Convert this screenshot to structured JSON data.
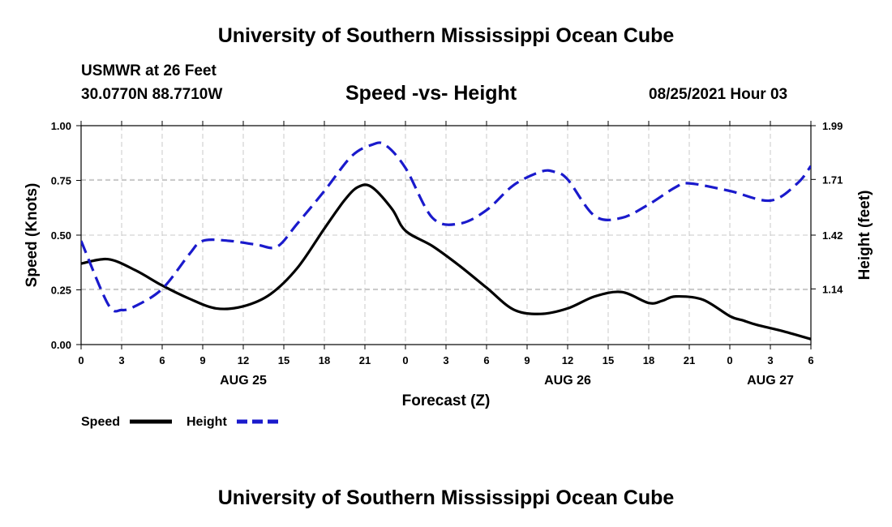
{
  "header": {
    "title_top": "University of Southern Mississippi Ocean Cube",
    "station": "USMWR at 26 Feet",
    "coords": "30.0770N  88.7710W",
    "chart_title": "Speed -vs- Height",
    "datetime": "08/25/2021 Hour 03",
    "title_bottom": "University of Southern Mississippi Ocean Cube"
  },
  "colors": {
    "speed": "#000000",
    "height": "#1a1acc",
    "grid": "#c8c8c8"
  },
  "chart_data": {
    "type": "line",
    "title": "Speed -vs- Height",
    "xlabel": "Forecast (Z)",
    "ylabel": "Speed (Knots)",
    "y2label": "Height (feet)",
    "x_tick_labels": [
      "0",
      "3",
      "6",
      "9",
      "12",
      "15",
      "18",
      "21",
      "0",
      "3",
      "6",
      "9",
      "12",
      "15",
      "18",
      "21",
      "0",
      "3",
      "6"
    ],
    "date_labels": [
      {
        "label": "AUG 25",
        "hour": 12
      },
      {
        "label": "AUG 26",
        "hour": 36
      },
      {
        "label": "AUG 27",
        "hour": 51
      }
    ],
    "xlim": [
      0,
      54
    ],
    "ylim": [
      0,
      1.0
    ],
    "y_ticks": [
      "0.00",
      "0.25",
      "0.50",
      "0.75",
      "1.00"
    ],
    "y2lim": [
      0.85,
      1.99
    ],
    "y2_ticks": [
      "1.14",
      "1.42",
      "1.71",
      "1.99"
    ],
    "grid": true,
    "legend_placement": "bottom-left",
    "series": [
      {
        "name": "Speed",
        "style": "solid",
        "axis": "left",
        "x": [
          0,
          2,
          4,
          6,
          8,
          10,
          12,
          14,
          16,
          18,
          19.5,
          20.5,
          21.5,
          23,
          24,
          26,
          28,
          30,
          32,
          34,
          36,
          38,
          40,
          42,
          43,
          44,
          46,
          48,
          49,
          50,
          52,
          54
        ],
        "y": [
          0.37,
          0.39,
          0.34,
          0.27,
          0.21,
          0.165,
          0.175,
          0.23,
          0.35,
          0.53,
          0.66,
          0.72,
          0.72,
          0.62,
          0.52,
          0.45,
          0.36,
          0.26,
          0.16,
          0.14,
          0.165,
          0.22,
          0.24,
          0.19,
          0.2,
          0.22,
          0.205,
          0.13,
          0.11,
          0.09,
          0.06,
          0.025
        ]
      },
      {
        "name": "Height",
        "style": "dashed",
        "axis": "right",
        "x": [
          0,
          2,
          3,
          4,
          6,
          8,
          9,
          11,
          13,
          14.5,
          16,
          18,
          20,
          21.5,
          22.5,
          24,
          26,
          28,
          30,
          32,
          34,
          35,
          36,
          38,
          40,
          42,
          44,
          45,
          48,
          51,
          53,
          54
        ],
        "y": [
          1.39,
          1.06,
          1.03,
          1.05,
          1.14,
          1.32,
          1.39,
          1.39,
          1.37,
          1.36,
          1.48,
          1.65,
          1.83,
          1.89,
          1.89,
          1.77,
          1.51,
          1.48,
          1.55,
          1.68,
          1.75,
          1.75,
          1.71,
          1.52,
          1.51,
          1.58,
          1.67,
          1.69,
          1.65,
          1.6,
          1.69,
          1.78
        ]
      }
    ]
  }
}
